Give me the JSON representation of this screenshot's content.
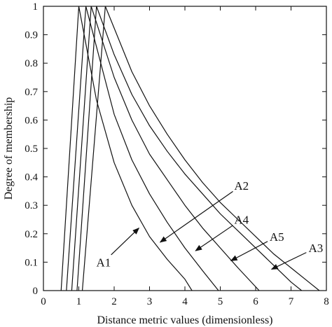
{
  "chart_data": {
    "type": "line",
    "title": "",
    "xlabel": "Distance metric values (dimensionless)",
    "ylabel": "Degree of membership",
    "xlim": [
      0,
      8
    ],
    "ylim": [
      0,
      1
    ],
    "grid": false,
    "legend": "none",
    "x_ticks": [
      "0",
      "1",
      "2",
      "3",
      "4",
      "5",
      "6",
      "7",
      "8"
    ],
    "y_ticks": [
      "0",
      "0.1",
      "0.2",
      "0.3",
      "0.4",
      "0.5",
      "0.6",
      "0.7",
      "0.8",
      "0.9",
      "1"
    ],
    "line_color": "#111111",
    "series": [
      {
        "name": "A1",
        "x": [
          0.5,
          1.0,
          1.5,
          2.0,
          2.5,
          3.0,
          3.5,
          4.0,
          4.2
        ],
        "y": [
          0.0,
          1.0,
          0.67,
          0.45,
          0.3,
          0.19,
          0.11,
          0.04,
          0.0
        ]
      },
      {
        "name": "A2",
        "x": [
          0.65,
          1.2,
          2.0,
          2.5,
          3.0,
          3.5,
          4.0,
          4.5,
          4.95
        ],
        "y": [
          0.0,
          1.0,
          0.62,
          0.46,
          0.34,
          0.24,
          0.15,
          0.07,
          0.0
        ]
      },
      {
        "name": "A4",
        "x": [
          0.8,
          1.35,
          2.0,
          2.5,
          3.0,
          3.5,
          4.0,
          4.5,
          5.0,
          5.5,
          6.1
        ],
        "y": [
          0.0,
          1.0,
          0.75,
          0.6,
          0.48,
          0.39,
          0.3,
          0.22,
          0.15,
          0.08,
          0.0
        ]
      },
      {
        "name": "A5",
        "x": [
          0.95,
          1.5,
          2.0,
          2.5,
          3.0,
          3.5,
          4.0,
          4.5,
          5.0,
          5.5,
          6.0,
          6.5,
          7.0,
          7.3
        ],
        "y": [
          0.0,
          1.0,
          0.83,
          0.69,
          0.58,
          0.49,
          0.41,
          0.34,
          0.27,
          0.21,
          0.15,
          0.09,
          0.03,
          0.0
        ]
      },
      {
        "name": "A3",
        "x": [
          1.1,
          1.75,
          2.5,
          3.0,
          3.5,
          4.0,
          4.5,
          5.0,
          5.5,
          6.0,
          6.5,
          7.0,
          7.5,
          7.8
        ],
        "y": [
          0.0,
          1.0,
          0.77,
          0.65,
          0.55,
          0.46,
          0.38,
          0.31,
          0.25,
          0.19,
          0.13,
          0.08,
          0.03,
          0.0
        ]
      }
    ],
    "annotations": [
      {
        "label": "A1",
        "text_at": [
          1.7,
          0.1
        ],
        "arrow_to": [
          2.7,
          0.22
        ]
      },
      {
        "label": "A2",
        "text_at": [
          5.6,
          0.37
        ],
        "arrow_to": [
          3.3,
          0.17
        ]
      },
      {
        "label": "A4",
        "text_at": [
          5.6,
          0.25
        ],
        "arrow_to": [
          4.3,
          0.14
        ]
      },
      {
        "label": "A5",
        "text_at": [
          6.6,
          0.19
        ],
        "arrow_to": [
          5.3,
          0.105
        ]
      },
      {
        "label": "A3",
        "text_at": [
          7.7,
          0.15
        ],
        "arrow_to": [
          6.45,
          0.075
        ]
      }
    ]
  }
}
